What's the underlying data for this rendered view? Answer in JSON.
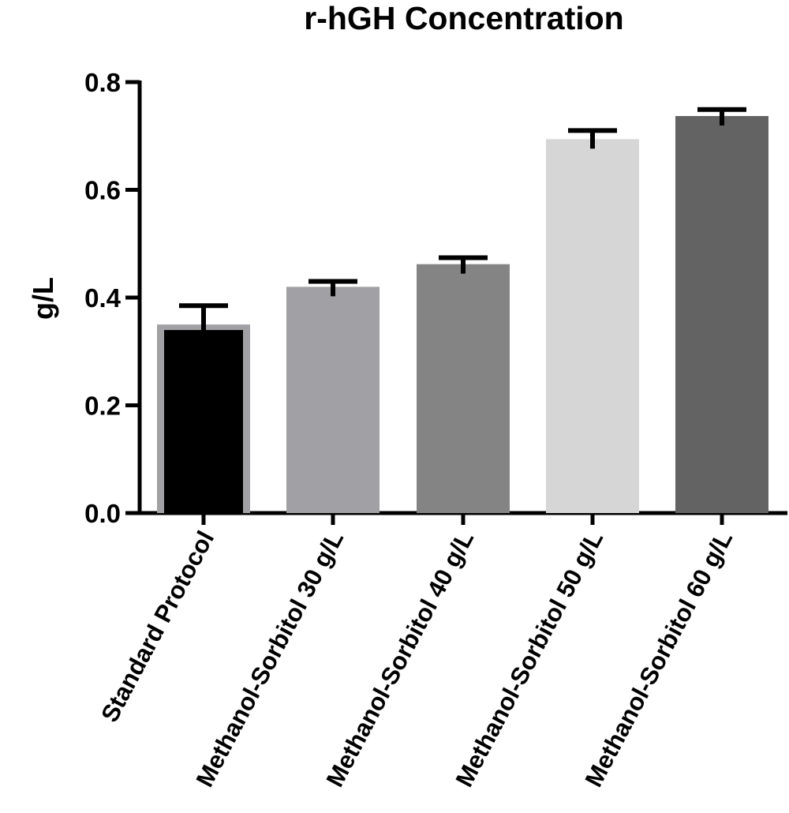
{
  "chart_data": {
    "type": "bar",
    "title": "r-hGH Concentration",
    "xlabel": "",
    "ylabel": "g/L",
    "ylim": [
      0,
      0.8
    ],
    "yticks": [
      "0.0",
      "0.2",
      "0.4",
      "0.6",
      "0.8"
    ],
    "categories": [
      "Standard Protocol",
      "Methanol-Sorbitol 30 g/L",
      "Methanol-Sorbitol 40 g/L",
      "Methanol-Sorbitol 50 g/L",
      "Methanol-Sorbitol 60 g/L"
    ],
    "values": [
      0.35,
      0.42,
      0.462,
      0.694,
      0.737
    ],
    "error_upper": [
      0.035,
      0.01,
      0.012,
      0.016,
      0.012
    ],
    "colors": [
      "#000000",
      "#a1a1a5",
      "#848484",
      "#d6d6d6",
      "#636363"
    ],
    "first_bar_outline_color": "#a1a1a5",
    "grid": false,
    "legend": "none"
  }
}
